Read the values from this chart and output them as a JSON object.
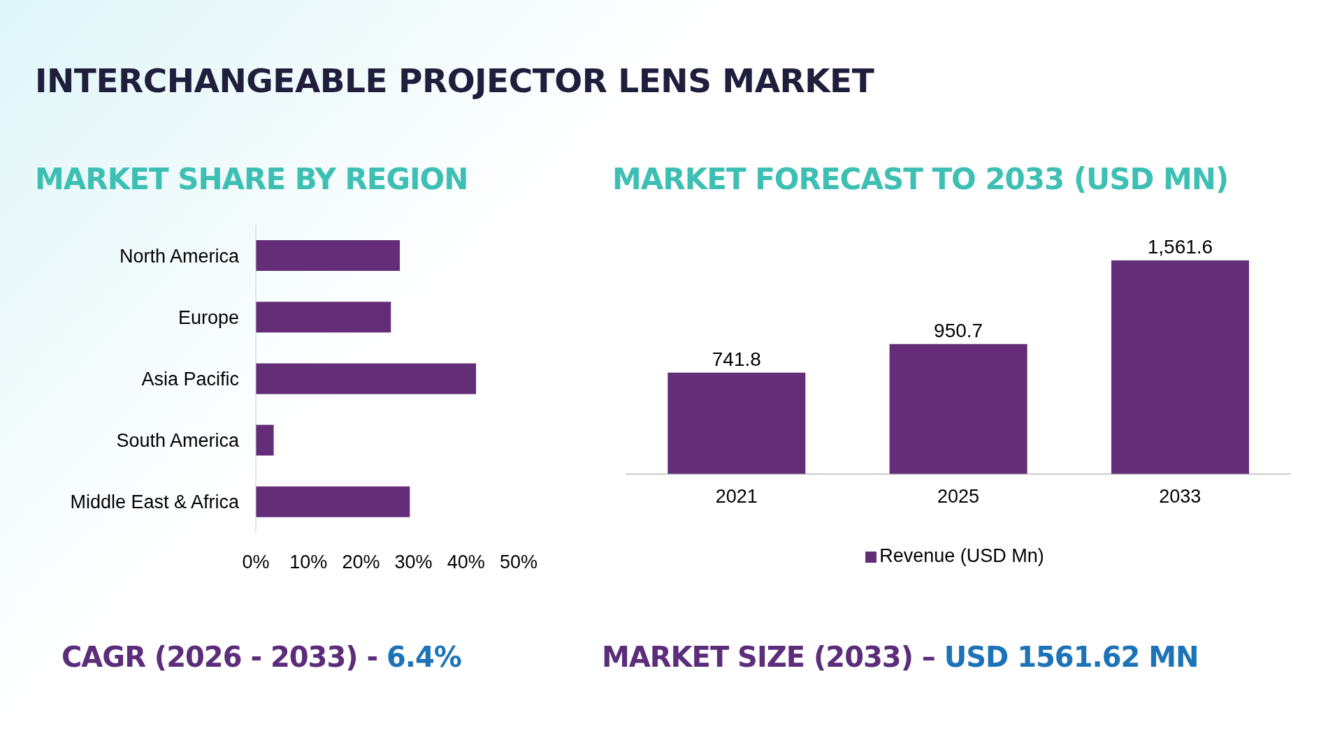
{
  "chart_data": [
    {
      "type": "other",
      "title": "INTERCHANGEABLE PROJECTOR LENS MARKET"
    },
    {
      "type": "bar",
      "orientation": "horizontal",
      "title": "MARKET SHARE BY REGION",
      "categories": [
        "North America",
        "Europe",
        "Asia Pacific",
        "South America",
        "Middle East & Africa"
      ],
      "values": [
        27.4,
        25.7,
        41.9,
        3.4,
        29.3
      ],
      "color": "#632d78",
      "xlim": [
        0,
        50
      ],
      "xticks": [
        {
          "value": 0,
          "label": "0%"
        },
        {
          "value": 10,
          "label": "10%"
        },
        {
          "value": 20,
          "label": "20%"
        },
        {
          "value": 30,
          "label": "30%"
        },
        {
          "value": 40,
          "label": "40%"
        },
        {
          "value": 50,
          "label": "50%"
        }
      ],
      "annotations": [
        "CAGR (2026 - 2033) - 6.4%"
      ]
    },
    {
      "type": "bar",
      "title": "MARKET FORECAST TO 2033 (USD MN)",
      "categories": [
        "2021",
        "2025",
        "2033"
      ],
      "series": [
        {
          "name": "Revenue (USD Mn)",
          "color": "#632d78",
          "values": [
            741.8,
            950.7,
            1561.6
          ],
          "value_labels": [
            "741.8",
            "950.7",
            "1,561.6"
          ]
        }
      ],
      "legend": "bottom",
      "annotations": [
        "MARKET SIZE (2033) – USD 1561.62 MN"
      ]
    }
  ]
}
